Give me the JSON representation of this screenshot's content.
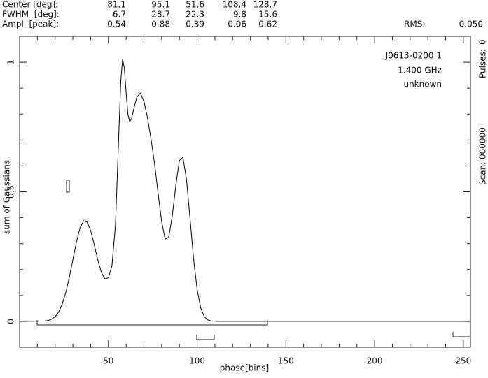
{
  "chart_data": {
    "type": "line",
    "header": {
      "rows": [
        {
          "label": "Center [deg]:",
          "values": [
            "81.1",
            "95.1",
            "51.6",
            "108.4",
            "128.7"
          ]
        },
        {
          "label": "FWHM  [deg]:",
          "values": [
            "6.7",
            "28.7",
            "22.3",
            "9.8",
            "15.6"
          ]
        },
        {
          "label": "Ampl  [peak]:",
          "values": [
            "0.54",
            "0.88",
            "0.39",
            "0.06",
            "0.62"
          ]
        }
      ],
      "rms_label": "RMS:",
      "rms": "0.050"
    },
    "annotations": [
      "J0613-0200 1",
      "1.400 GHz",
      "unknown"
    ],
    "side_labels": [
      "Scan: 000000",
      "Pulses:",
      "0"
    ],
    "xlabel": "phase[bins]",
    "ylabel": "sum of Gaussians",
    "color": "#000000",
    "x": [
      0,
      14,
      16,
      18,
      20,
      22,
      24,
      26,
      28,
      30,
      32,
      34,
      36,
      38,
      40,
      42,
      44,
      46,
      48,
      50,
      52,
      54,
      56,
      57,
      58,
      59,
      60,
      61,
      62,
      63,
      64,
      66,
      68,
      70,
      72,
      74,
      76,
      78,
      80,
      82,
      84,
      86,
      88,
      90,
      92,
      94,
      96,
      98,
      100,
      102,
      104,
      106,
      108,
      112,
      254
    ],
    "values": [
      0,
      0.001,
      0.0035,
      0.0084,
      0.018,
      0.036,
      0.066,
      0.111,
      0.17,
      0.238,
      0.306,
      0.36,
      0.388,
      0.383,
      0.351,
      0.297,
      0.238,
      0.19,
      0.164,
      0.168,
      0.214,
      0.372,
      0.745,
      0.929,
      1.012,
      0.978,
      0.881,
      0.8,
      0.77,
      0.781,
      0.811,
      0.865,
      0.88,
      0.85,
      0.787,
      0.705,
      0.609,
      0.495,
      0.385,
      0.317,
      0.325,
      0.407,
      0.525,
      0.621,
      0.633,
      0.547,
      0.397,
      0.241,
      0.123,
      0.052,
      0.018,
      0.0055,
      0.0014,
      0,
      0
    ],
    "xlim": [
      0,
      254
    ],
    "ylim": [
      -0.1,
      1.1
    ],
    "xticks": [
      50,
      100,
      150,
      200,
      250
    ],
    "yticks": [
      0,
      0.5,
      1
    ],
    "xminorticks": [
      10,
      20,
      30,
      40,
      60,
      70,
      80,
      90,
      110,
      120,
      130,
      140,
      160,
      170,
      180,
      190,
      210,
      220,
      230,
      240
    ],
    "yminorticks": [
      0.1,
      0.2,
      0.3,
      0.4,
      0.6,
      0.7,
      0.8,
      0.9
    ]
  }
}
